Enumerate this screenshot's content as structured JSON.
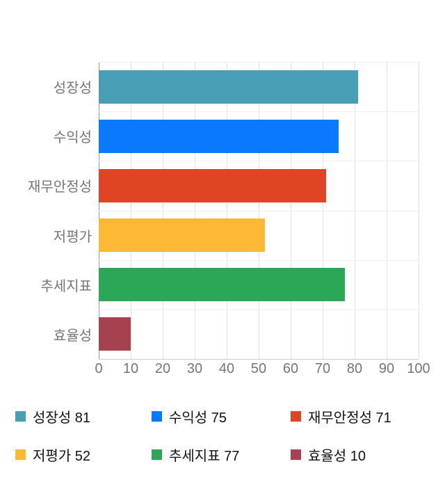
{
  "chart_data": {
    "type": "bar",
    "orientation": "horizontal",
    "title": "",
    "xlabel": "",
    "ylabel": "",
    "categories": [
      "성장성",
      "수익성",
      "재무안정성",
      "저평가",
      "추세지표",
      "효율성"
    ],
    "values": [
      81,
      75,
      71,
      52,
      77,
      10
    ],
    "colors": [
      "#489fb5",
      "#0b79fd",
      "#df4425",
      "#fdb935",
      "#2ba757",
      "#a6414f"
    ],
    "xlim": [
      0,
      100
    ],
    "ticks": [
      0,
      10,
      20,
      30,
      40,
      50,
      60,
      70,
      80,
      90,
      100
    ],
    "grid": true,
    "background": "#ffffff",
    "axis_text_color": "#757575",
    "legend_position": "bottom",
    "legend": [
      {
        "label": "성장성",
        "value": 81
      },
      {
        "label": "수익성",
        "value": 75
      },
      {
        "label": "재무안정성",
        "value": 71
      },
      {
        "label": "저평가",
        "value": 52
      },
      {
        "label": "추세지표",
        "value": 77
      },
      {
        "label": "효율성",
        "value": 10
      }
    ]
  }
}
